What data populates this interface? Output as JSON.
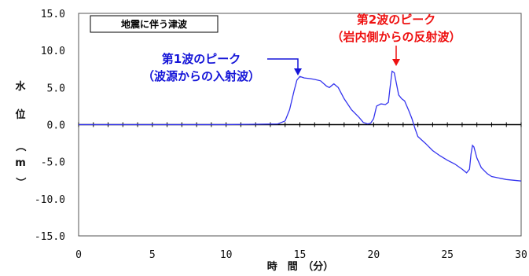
{
  "chart_data": {
    "type": "line",
    "title": "",
    "legend_box": "地震に伴う津波",
    "xlabel": "時　間　（分）",
    "ylabel_chars": [
      "水",
      "位",
      "（",
      "m",
      "）"
    ],
    "xlim": [
      0,
      30
    ],
    "ylim": [
      -15,
      15
    ],
    "xticks": [
      0,
      5,
      10,
      15,
      20,
      25,
      30
    ],
    "yticks": [
      "15.0",
      "10.0",
      "5.0",
      "0.0",
      "-5.0",
      "-10.0",
      "-15.0"
    ],
    "ytick_values": [
      15,
      10,
      5,
      0,
      -5,
      -10,
      -15
    ],
    "grid": false,
    "series": [
      {
        "color": "#3333ee",
        "x": [
          0,
          10,
          13.5,
          14.0,
          14.3,
          14.6,
          14.8,
          15.0,
          15.3,
          15.7,
          16.0,
          16.4,
          16.8,
          17.0,
          17.3,
          17.6,
          18.0,
          18.5,
          19.0,
          19.3,
          19.6,
          19.8,
          20.0,
          20.2,
          20.5,
          20.8,
          21.0,
          21.1,
          21.25,
          21.4,
          21.55,
          21.7,
          21.9,
          22.1,
          22.4,
          22.6,
          22.8,
          23.0,
          23.5,
          24.0,
          24.5,
          25.0,
          25.5,
          26.0,
          26.3,
          26.5,
          26.6,
          26.7,
          26.8,
          27.0,
          27.3,
          27.7,
          28.0,
          29.0,
          30.0
        ],
        "y": [
          0,
          0,
          0.1,
          0.5,
          2.0,
          4.5,
          6.0,
          6.5,
          6.3,
          6.2,
          6.1,
          5.9,
          5.2,
          5.0,
          5.5,
          5.0,
          3.5,
          2.0,
          1.0,
          0.3,
          0.1,
          0.2,
          0.8,
          2.5,
          2.8,
          2.7,
          3.0,
          4.8,
          7.2,
          7.0,
          5.5,
          4.0,
          3.5,
          3.2,
          1.8,
          0.8,
          -0.5,
          -1.6,
          -2.5,
          -3.5,
          -4.2,
          -4.8,
          -5.3,
          -6.0,
          -6.5,
          -6.0,
          -4.0,
          -2.8,
          -3.0,
          -4.5,
          -5.8,
          -6.6,
          -7.0,
          -7.4,
          -7.6
        ]
      }
    ],
    "annotations": [
      {
        "lines": [
          "第1波のピーク",
          "（波源からの入射波）"
        ],
        "color": "#1515d8",
        "at_x": 15.0,
        "at_y": 6.5
      },
      {
        "lines": [
          "第2波のピーク",
          "（岩内側からの反射波）"
        ],
        "color": "#ee1111",
        "at_x": 21.25,
        "at_y": 7.2
      }
    ]
  }
}
